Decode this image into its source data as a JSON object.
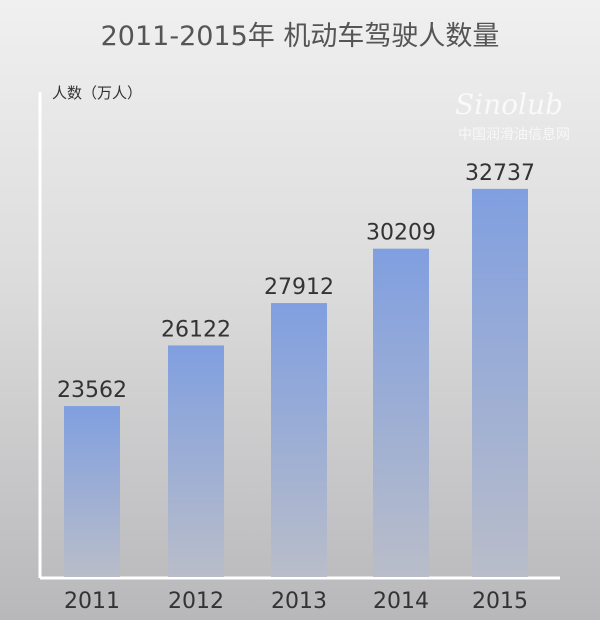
{
  "chart_data": {
    "type": "bar",
    "title": "2011-2015年 机动车驾驶人数量",
    "ylabel": "人数（万人）",
    "xlabel": "",
    "categories": [
      "2011",
      "2012",
      "2013",
      "2014",
      "2015"
    ],
    "values": [
      23562,
      26122,
      27912,
      30209,
      32737
    ],
    "data_labels": [
      "23562",
      "26122",
      "27912",
      "30209",
      "32737"
    ],
    "ylim": [
      16300,
      36700
    ],
    "grid": false,
    "bar_color_top": "#809fe0",
    "bar_color_bottom": "#b9bdc9"
  },
  "watermark": {
    "logo": "Sinolub .com",
    "text": "中国润滑油信息网"
  }
}
